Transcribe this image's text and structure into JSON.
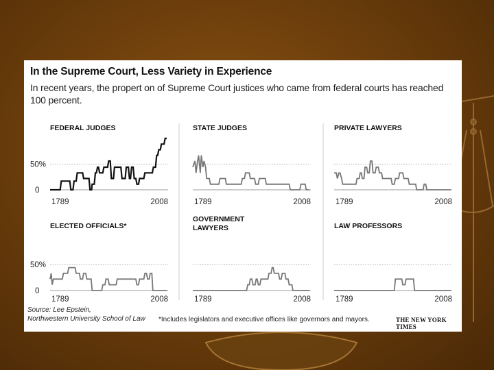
{
  "slide": {
    "colors": {
      "background": "#6e3f0c",
      "panel": "#ffffff",
      "series_line": "#111111",
      "dim_line": "#777777",
      "gridline": "#aaaaaa",
      "decor": "#a0703a"
    },
    "decorations": [
      "scales-of-justice-icon",
      "bowl-icon"
    ]
  },
  "graphic": {
    "title": "In the Supreme Court, Less Variety in Experience",
    "subtitle": "In recent years, the propert on of Supreme Court justices who came from federal courts has reached 100 percent.",
    "source_lines": [
      "Source: Lee Epstein,",
      "Northwestern University School of Law"
    ],
    "footnote": "*Includes legislators and executive offices like governors and mayors.",
    "credit": "THE NEW YORK TIMES"
  },
  "chart_data": [
    {
      "type": "line",
      "title": "FEDERAL JUDGES",
      "x_tick_labels": [
        "1789",
        "2008"
      ],
      "y_tick_labels": [
        "50%",
        "0"
      ],
      "ylim": [
        0,
        100
      ],
      "xlim": [
        1789,
        2008
      ],
      "grid": "dotted line at 50%",
      "x": [
        1789,
        1797,
        1798,
        1808,
        1810,
        1826,
        1828,
        1832,
        1834,
        1838,
        1840,
        1843,
        1845,
        1850,
        1852,
        1856,
        1858,
        1862,
        1864,
        1867,
        1868,
        1872,
        1874,
        1876,
        1878,
        1880,
        1882,
        1884,
        1886,
        1888,
        1890,
        1893,
        1895,
        1897,
        1899,
        1902,
        1904,
        1908,
        1910,
        1916,
        1918,
        1922,
        1924,
        1930,
        1932,
        1936,
        1938,
        1940,
        1942,
        1945,
        1947,
        1950,
        1952,
        1955,
        1957,
        1960,
        1962,
        1965,
        1967,
        1970,
        1972,
        1975,
        1977,
        1981,
        1983,
        1987,
        1989,
        1991,
        1993,
        1996,
        1998,
        2003,
        2005,
        2008
      ],
      "values": [
        0,
        0,
        0,
        0,
        17,
        17,
        0,
        0,
        17,
        17,
        33,
        33,
        33,
        33,
        22,
        22,
        22,
        22,
        0,
        0,
        11,
        11,
        33,
        33,
        44,
        44,
        33,
        33,
        33,
        33,
        44,
        44,
        44,
        44,
        56,
        56,
        22,
        22,
        44,
        44,
        44,
        44,
        22,
        22,
        44,
        44,
        22,
        22,
        44,
        44,
        22,
        22,
        11,
        11,
        22,
        22,
        22,
        22,
        33,
        33,
        33,
        33,
        33,
        33,
        44,
        44,
        67,
        67,
        78,
        78,
        89,
        89,
        100,
        100
      ]
    },
    {
      "type": "line",
      "title": "STATE JUDGES",
      "x_tick_labels": [
        "1789",
        "2008"
      ],
      "ylim": [
        0,
        100
      ],
      "xlim": [
        1789,
        2008
      ],
      "x": [
        1789,
        1793,
        1795,
        1798,
        1800,
        1803,
        1805,
        1808,
        1810,
        1813,
        1815,
        1820,
        1822,
        1838,
        1840,
        1850,
        1852,
        1856,
        1858,
        1880,
        1882,
        1886,
        1888,
        1895,
        1897,
        1905,
        1907,
        1912,
        1914,
        1925,
        1927,
        1937,
        1939,
        1954,
        1956,
        1970,
        1972,
        1979,
        1981,
        1990,
        1992,
        2000,
        2002,
        2008
      ],
      "values": [
        44,
        56,
        33,
        56,
        67,
        33,
        67,
        44,
        56,
        44,
        22,
        22,
        11,
        11,
        22,
        22,
        11,
        11,
        11,
        11,
        22,
        22,
        33,
        33,
        22,
        22,
        11,
        11,
        22,
        22,
        11,
        11,
        11,
        11,
        11,
        11,
        0,
        0,
        0,
        0,
        11,
        11,
        0,
        0
      ]
    },
    {
      "type": "line",
      "title": "PRIVATE LAWYERS",
      "x_tick_labels": [
        "1789",
        "2008"
      ],
      "ylim": [
        0,
        100
      ],
      "xlim": [
        1789,
        2008
      ],
      "x": [
        1789,
        1793,
        1795,
        1798,
        1800,
        1803,
        1805,
        1812,
        1814,
        1830,
        1832,
        1836,
        1838,
        1840,
        1842,
        1845,
        1847,
        1850,
        1852,
        1855,
        1857,
        1860,
        1862,
        1866,
        1868,
        1872,
        1874,
        1878,
        1880,
        1890,
        1892,
        1896,
        1898,
        1902,
        1904,
        1910,
        1912,
        1918,
        1920,
        1928,
        1930,
        1942,
        1944,
        1950,
        1952,
        1956,
        1958,
        1961,
        1963,
        1968,
        1970,
        2008
      ],
      "values": [
        33,
        33,
        22,
        33,
        33,
        22,
        11,
        11,
        11,
        11,
        22,
        22,
        33,
        33,
        22,
        22,
        44,
        44,
        33,
        33,
        56,
        56,
        33,
        33,
        44,
        44,
        33,
        33,
        22,
        22,
        22,
        22,
        11,
        11,
        22,
        22,
        33,
        33,
        22,
        22,
        11,
        11,
        0,
        0,
        0,
        0,
        11,
        11,
        0,
        0,
        0,
        0
      ]
    },
    {
      "type": "line",
      "title": "ELECTED OFFICIALS*",
      "x_tick_labels": [
        "1789",
        "2008"
      ],
      "y_tick_labels": [
        "50%",
        "0"
      ],
      "ylim": [
        0,
        100
      ],
      "xlim": [
        1789,
        2008
      ],
      "grid": "dotted line at 50%",
      "x": [
        1789,
        1791,
        1793,
        1795,
        1797,
        1804,
        1806,
        1812,
        1814,
        1822,
        1824,
        1836,
        1838,
        1844,
        1846,
        1850,
        1852,
        1856,
        1858,
        1866,
        1868,
        1874,
        1876,
        1886,
        1888,
        1892,
        1894,
        1898,
        1900,
        1906,
        1908,
        1913,
        1915,
        1920,
        1922,
        1950,
        1952,
        1955,
        1957,
        1960,
        1962,
        1965,
        1967,
        1970,
        1972,
        1975,
        1977,
        1980,
        1982,
        2008
      ],
      "values": [
        22,
        33,
        11,
        22,
        22,
        22,
        22,
        22,
        33,
        33,
        44,
        44,
        33,
        33,
        22,
        22,
        33,
        33,
        22,
        22,
        0,
        0,
        0,
        0,
        11,
        11,
        22,
        22,
        11,
        11,
        11,
        11,
        22,
        22,
        22,
        22,
        11,
        11,
        22,
        22,
        22,
        22,
        33,
        33,
        22,
        22,
        33,
        33,
        0,
        0
      ]
    },
    {
      "type": "line",
      "title": "GOVERNMENT LAWYERS",
      "x_tick_labels": [
        "1789",
        "2008"
      ],
      "ylim": [
        0,
        100
      ],
      "xlim": [
        1789,
        2008
      ],
      "x": [
        1789,
        1890,
        1892,
        1895,
        1897,
        1900,
        1902,
        1906,
        1908,
        1910,
        1912,
        1915,
        1917,
        1922,
        1924,
        1930,
        1932,
        1936,
        1938,
        1940,
        1942,
        1945,
        1947,
        1950,
        1952,
        1955,
        1957,
        1962,
        1964,
        1968,
        1970,
        1975,
        1977,
        2008
      ],
      "values": [
        0,
        0,
        11,
        11,
        22,
        22,
        11,
        11,
        22,
        22,
        11,
        11,
        22,
        22,
        22,
        22,
        33,
        33,
        44,
        44,
        33,
        33,
        33,
        33,
        22,
        22,
        33,
        33,
        22,
        22,
        11,
        11,
        0,
        0
      ]
    },
    {
      "type": "line",
      "title": "LAW PROFESSORS",
      "x_tick_labels": [
        "1789",
        "2008"
      ],
      "ylim": [
        0,
        100
      ],
      "xlim": [
        1789,
        2008
      ],
      "x": [
        1789,
        1902,
        1904,
        1916,
        1918,
        1922,
        1924,
        1938,
        1940,
        2008
      ],
      "values": [
        0,
        0,
        22,
        22,
        11,
        11,
        22,
        22,
        0,
        0
      ]
    }
  ]
}
